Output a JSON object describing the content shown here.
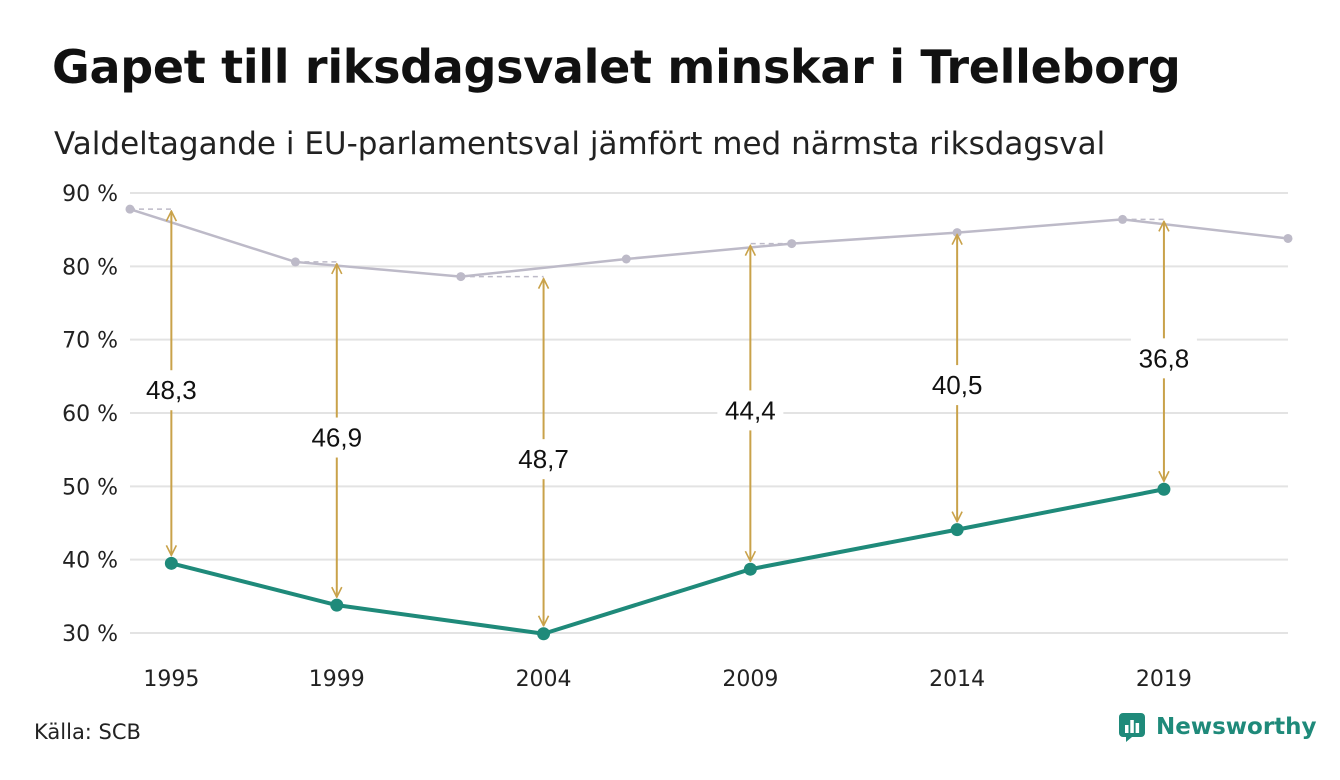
{
  "title": "Gapet till riksdagsvalet minskar i Trelleborg",
  "subtitle": "Valdeltagande i EU-parlamentsval jämfört med närmsta riksdagsval",
  "source": "Källa: SCB",
  "brand": {
    "name": "Newsworthy",
    "icon": "newsworthy-logo-icon"
  },
  "colors": {
    "eu": "#1f8a7a",
    "riksdag": "#bdbac8",
    "gap_arrow": "#c9a24a",
    "grid": "#e3e3e3"
  },
  "chart_data": {
    "type": "line",
    "y_ticks": [
      "90 %",
      "80 %",
      "70 %",
      "60 %",
      "50 %",
      "40 %",
      "30 %"
    ],
    "y_tick_values": [
      90,
      80,
      70,
      60,
      50,
      40,
      30
    ],
    "ylim": [
      30,
      90
    ],
    "xlim": [
      1994,
      2022
    ],
    "x_ticks": [
      1995,
      1999,
      2004,
      2009,
      2014,
      2019
    ],
    "grid": true,
    "series": [
      {
        "key": "riksdag",
        "x": [
          1994,
          1998,
          2002,
          2006,
          2010,
          2014,
          2018,
          2022
        ],
        "values": [
          87.8,
          80.6,
          78.6,
          81.0,
          83.1,
          84.6,
          86.4,
          83.8
        ]
      },
      {
        "key": "eu",
        "x": [
          1995,
          1999,
          2004,
          2009,
          2014,
          2019
        ],
        "values": [
          39.5,
          33.8,
          29.9,
          38.7,
          44.1,
          49.6
        ]
      }
    ],
    "gaps": [
      {
        "year": 1995,
        "label": "48,3",
        "from": 39.5,
        "to": 87.8
      },
      {
        "year": 1999,
        "label": "46,9",
        "from": 33.8,
        "to": 80.6
      },
      {
        "year": 2004,
        "label": "48,7",
        "from": 29.9,
        "to": 78.6
      },
      {
        "year": 2009,
        "label": "44,4",
        "from": 38.7,
        "to": 83.1
      },
      {
        "year": 2014,
        "label": "40,5",
        "from": 44.1,
        "to": 84.6
      },
      {
        "year": 2019,
        "label": "36,8",
        "from": 49.6,
        "to": 86.4
      }
    ]
  }
}
